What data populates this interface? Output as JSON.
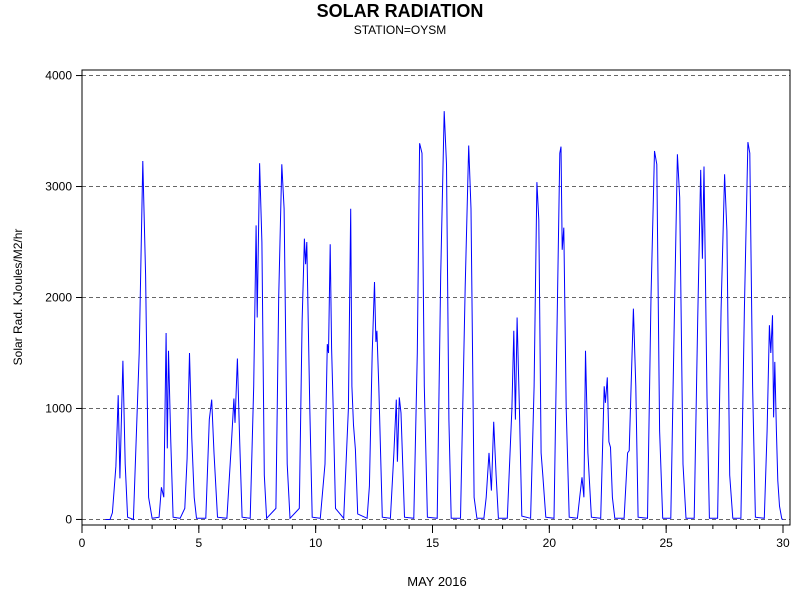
{
  "chart_data": {
    "type": "line",
    "title": "SOLAR RADIATION",
    "subtitle": "STATION=OYSM",
    "xlabel": "MAY 2016",
    "ylabel": "Solar Rad. KJoules/M2/hr",
    "xlim": [
      0,
      30.3
    ],
    "ylim": [
      -50,
      4050
    ],
    "x_ticks": [
      0,
      5,
      10,
      15,
      20,
      25,
      30
    ],
    "x_minor_step": 1,
    "y_ticks": [
      0,
      1000,
      2000,
      3000,
      4000
    ],
    "grid": "y-dashed",
    "line_color": "#0000ff",
    "series": [
      {
        "values": [
          [
            1.0,
            0
          ],
          [
            1.2,
            0
          ],
          [
            1.3,
            60
          ],
          [
            1.45,
            480
          ],
          [
            1.55,
            1120
          ],
          [
            1.62,
            370
          ],
          [
            1.75,
            1430
          ],
          [
            1.85,
            500
          ],
          [
            1.95,
            20
          ],
          [
            2.2,
            0
          ],
          [
            2.45,
            1500
          ],
          [
            2.6,
            3230
          ],
          [
            2.72,
            2200
          ],
          [
            2.85,
            200
          ],
          [
            3.0,
            10
          ],
          [
            3.3,
            20
          ],
          [
            3.4,
            290
          ],
          [
            3.5,
            200
          ],
          [
            3.6,
            1680
          ],
          [
            3.65,
            640
          ],
          [
            3.7,
            1520
          ],
          [
            3.8,
            700
          ],
          [
            3.9,
            20
          ],
          [
            4.2,
            10
          ],
          [
            4.4,
            100
          ],
          [
            4.5,
            550
          ],
          [
            4.6,
            1500
          ],
          [
            4.7,
            730
          ],
          [
            4.8,
            200
          ],
          [
            4.9,
            10
          ],
          [
            5.3,
            10
          ],
          [
            5.45,
            900
          ],
          [
            5.55,
            1080
          ],
          [
            5.65,
            600
          ],
          [
            5.8,
            20
          ],
          [
            6.2,
            10
          ],
          [
            6.4,
            700
          ],
          [
            6.5,
            1090
          ],
          [
            6.55,
            870
          ],
          [
            6.65,
            1450
          ],
          [
            6.75,
            700
          ],
          [
            6.85,
            20
          ],
          [
            7.2,
            10
          ],
          [
            7.35,
            1200
          ],
          [
            7.45,
            2650
          ],
          [
            7.5,
            1820
          ],
          [
            7.6,
            3210
          ],
          [
            7.7,
            2500
          ],
          [
            7.8,
            400
          ],
          [
            7.9,
            10
          ],
          [
            8.3,
            100
          ],
          [
            8.42,
            2000
          ],
          [
            8.55,
            3200
          ],
          [
            8.65,
            2800
          ],
          [
            8.78,
            500
          ],
          [
            8.9,
            10
          ],
          [
            9.3,
            100
          ],
          [
            9.42,
            1780
          ],
          [
            9.52,
            2530
          ],
          [
            9.57,
            2300
          ],
          [
            9.62,
            2500
          ],
          [
            9.75,
            1000
          ],
          [
            9.85,
            20
          ],
          [
            10.2,
            10
          ],
          [
            10.4,
            500
          ],
          [
            10.5,
            1580
          ],
          [
            10.55,
            1500
          ],
          [
            10.62,
            2480
          ],
          [
            10.68,
            1540
          ],
          [
            10.75,
            1000
          ],
          [
            10.85,
            100
          ],
          [
            11.2,
            10
          ],
          [
            11.4,
            1000
          ],
          [
            11.5,
            2800
          ],
          [
            11.55,
            1200
          ],
          [
            11.62,
            850
          ],
          [
            11.7,
            630
          ],
          [
            11.8,
            50
          ],
          [
            12.2,
            10
          ],
          [
            12.3,
            300
          ],
          [
            12.42,
            1500
          ],
          [
            12.52,
            2140
          ],
          [
            12.58,
            1600
          ],
          [
            12.62,
            1700
          ],
          [
            12.7,
            1200
          ],
          [
            12.85,
            20
          ],
          [
            13.2,
            10
          ],
          [
            13.35,
            600
          ],
          [
            13.45,
            1080
          ],
          [
            13.5,
            520
          ],
          [
            13.58,
            1100
          ],
          [
            13.65,
            960
          ],
          [
            13.8,
            20
          ],
          [
            14.2,
            10
          ],
          [
            14.35,
            1500
          ],
          [
            14.45,
            3390
          ],
          [
            14.55,
            3300
          ],
          [
            14.65,
            1200
          ],
          [
            14.78,
            20
          ],
          [
            15.2,
            10
          ],
          [
            15.35,
            2200
          ],
          [
            15.5,
            3680
          ],
          [
            15.6,
            3200
          ],
          [
            15.7,
            900
          ],
          [
            15.8,
            10
          ],
          [
            16.2,
            10
          ],
          [
            16.4,
            2100
          ],
          [
            16.55,
            3370
          ],
          [
            16.65,
            2800
          ],
          [
            16.78,
            200
          ],
          [
            16.9,
            10
          ],
          [
            17.2,
            10
          ],
          [
            17.3,
            200
          ],
          [
            17.42,
            600
          ],
          [
            17.52,
            260
          ],
          [
            17.62,
            880
          ],
          [
            17.72,
            400
          ],
          [
            17.82,
            10
          ],
          [
            18.2,
            10
          ],
          [
            18.4,
            1000
          ],
          [
            18.48,
            1700
          ],
          [
            18.55,
            900
          ],
          [
            18.62,
            1820
          ],
          [
            18.72,
            1000
          ],
          [
            18.82,
            30
          ],
          [
            19.2,
            10
          ],
          [
            19.35,
            1200
          ],
          [
            19.47,
            3040
          ],
          [
            19.55,
            2700
          ],
          [
            19.65,
            600
          ],
          [
            19.72,
            400
          ],
          [
            19.85,
            20
          ],
          [
            20.2,
            10
          ],
          [
            20.35,
            2000
          ],
          [
            20.45,
            3300
          ],
          [
            20.5,
            3360
          ],
          [
            20.55,
            2430
          ],
          [
            20.62,
            2630
          ],
          [
            20.72,
            1000
          ],
          [
            20.85,
            20
          ],
          [
            21.2,
            10
          ],
          [
            21.3,
            200
          ],
          [
            21.4,
            380
          ],
          [
            21.48,
            200
          ],
          [
            21.55,
            1520
          ],
          [
            21.65,
            600
          ],
          [
            21.8,
            20
          ],
          [
            22.2,
            10
          ],
          [
            22.35,
            1200
          ],
          [
            22.4,
            1050
          ],
          [
            22.48,
            1280
          ],
          [
            22.55,
            700
          ],
          [
            22.62,
            650
          ],
          [
            22.7,
            200
          ],
          [
            22.8,
            10
          ],
          [
            23.2,
            10
          ],
          [
            23.35,
            600
          ],
          [
            23.42,
            620
          ],
          [
            23.5,
            1200
          ],
          [
            23.6,
            1900
          ],
          [
            23.7,
            1200
          ],
          [
            23.8,
            20
          ],
          [
            24.2,
            10
          ],
          [
            24.35,
            2000
          ],
          [
            24.5,
            3320
          ],
          [
            24.6,
            3200
          ],
          [
            24.72,
            800
          ],
          [
            24.85,
            10
          ],
          [
            25.2,
            10
          ],
          [
            25.35,
            1800
          ],
          [
            25.48,
            3290
          ],
          [
            25.58,
            2900
          ],
          [
            25.72,
            500
          ],
          [
            25.85,
            10
          ],
          [
            26.2,
            10
          ],
          [
            26.35,
            1800
          ],
          [
            26.48,
            3150
          ],
          [
            26.55,
            2350
          ],
          [
            26.62,
            3180
          ],
          [
            26.75,
            1100
          ],
          [
            26.85,
            10
          ],
          [
            27.2,
            10
          ],
          [
            27.35,
            1900
          ],
          [
            27.5,
            3110
          ],
          [
            27.6,
            2600
          ],
          [
            27.72,
            400
          ],
          [
            27.85,
            10
          ],
          [
            28.2,
            10
          ],
          [
            28.35,
            1900
          ],
          [
            28.5,
            3400
          ],
          [
            28.58,
            3300
          ],
          [
            28.7,
            1200
          ],
          [
            28.82,
            20
          ],
          [
            29.2,
            10
          ],
          [
            29.32,
            800
          ],
          [
            29.42,
            1750
          ],
          [
            29.48,
            1500
          ],
          [
            29.55,
            1840
          ],
          [
            29.6,
            920
          ],
          [
            29.65,
            1420
          ],
          [
            29.72,
            800
          ],
          [
            29.78,
            350
          ],
          [
            29.85,
            120
          ],
          [
            29.95,
            5
          ],
          [
            30.0,
            0
          ]
        ]
      }
    ]
  }
}
